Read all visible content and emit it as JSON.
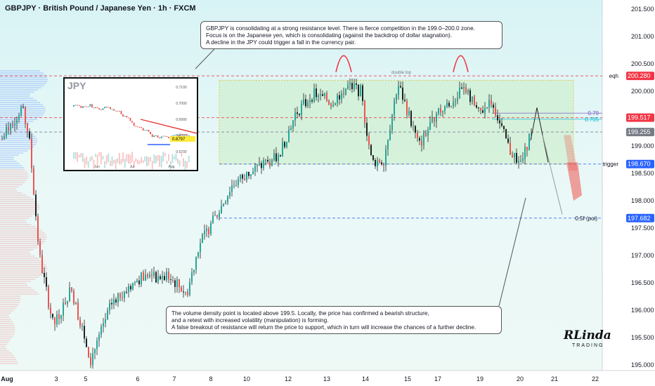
{
  "header": {
    "title": "GBPJPY · British Pound / Japanese Yen · 1h · FXCM"
  },
  "notes": {
    "top": [
      "GBPJPY is consolidating at a strong resistance level. There is fierce competition in the 199.0–200.0 zone.",
      "Focus is on the Japanese yen, which is consolidating (against the backdrop of dollar stagnation).",
      "A decline in the JPY could trigger a fall in the currency pair."
    ],
    "bottom": [
      "The volume density point is located above 199.5. Locally, the price has confirmed a bearish structure,",
      "and a retest with increased volatility (manipulation) is forming.",
      "A false breakout of resistance will return the price to support, which in turn will increase the chances of a further decline."
    ]
  },
  "inset": {
    "title": "JPY",
    "yticks": [
      "0.7100",
      "0.7000",
      "0.6900",
      "0.6800",
      "0.6700"
    ],
    "last_label": "0.6797",
    "xticks": [
      "Jun",
      "Jul",
      "Aug"
    ]
  },
  "annotations": {
    "double_top": "double top"
  },
  "logo": {
    "big": "RLinda",
    "small": "TRADING"
  },
  "colors": {
    "bull": "#26a69a",
    "bear": "#ef5350",
    "zone": "#c8ecc4",
    "red_label": "#f23645",
    "blue_label": "#2962ff",
    "grey_label": "#787b86"
  },
  "chart_data": {
    "type": "candlestick",
    "symbol": "GBPJPY",
    "timeframe": "1h",
    "ylim": [
      195.0,
      201.5
    ],
    "yticks": [
      195.0,
      195.5,
      196.0,
      196.5,
      197.0,
      197.5,
      198.0,
      198.5,
      199.0,
      199.5,
      200.0,
      200.5,
      201.0,
      201.5
    ],
    "xticks": [
      "Aug",
      "3",
      "5",
      "6",
      "7",
      "8",
      "10",
      "12",
      "13",
      "14",
      "15",
      "17",
      "19",
      "20",
      "21",
      "22"
    ],
    "levels": [
      {
        "label": "eqh",
        "price": 200.28,
        "price_label": "200.280",
        "color": "#f23645"
      },
      {
        "label": "",
        "price": 199.517,
        "price_label": "199.517",
        "color": "#f23645"
      },
      {
        "label": "",
        "price": 199.255,
        "price_label": "199.255",
        "color": "#787b86"
      },
      {
        "label": "trigger",
        "price": 198.67,
        "price_label": "198.670",
        "color": "#2962ff"
      },
      {
        "label": "0.5f (poi)",
        "price": 197.682,
        "price_label": "197.682",
        "color": "#2962ff"
      }
    ],
    "fib": [
      {
        "label": "0.79",
        "price": 199.6
      },
      {
        "label": "0.705",
        "price": 199.49
      }
    ],
    "resistance_zone": [
      198.67,
      200.2
    ],
    "path": [
      [
        1,
        199.1
      ],
      [
        14,
        199.4
      ],
      [
        30,
        199.7
      ],
      [
        40,
        199.2
      ],
      [
        55,
        197.0
      ],
      [
        75,
        195.7
      ],
      [
        100,
        196.4
      ],
      [
        128,
        195.1
      ],
      [
        160,
        196.2
      ],
      [
        200,
        196.6
      ],
      [
        240,
        196.6
      ],
      [
        265,
        196.3
      ],
      [
        282,
        197.2
      ],
      [
        310,
        197.8
      ],
      [
        330,
        198.3
      ],
      [
        365,
        198.6
      ],
      [
        395,
        198.8
      ],
      [
        420,
        199.6
      ],
      [
        445,
        199.95
      ],
      [
        470,
        199.8
      ],
      [
        495,
        200.1
      ],
      [
        512,
        200.0
      ],
      [
        528,
        198.7
      ],
      [
        545,
        198.75
      ],
      [
        565,
        200.15
      ],
      [
        580,
        199.6
      ],
      [
        595,
        199.0
      ],
      [
        620,
        199.6
      ],
      [
        640,
        199.8
      ],
      [
        660,
        200.05
      ],
      [
        680,
        199.6
      ],
      [
        700,
        199.8
      ],
      [
        710,
        199.4
      ],
      [
        725,
        198.9
      ],
      [
        742,
        198.7
      ],
      [
        755,
        199.3
      ]
    ]
  }
}
